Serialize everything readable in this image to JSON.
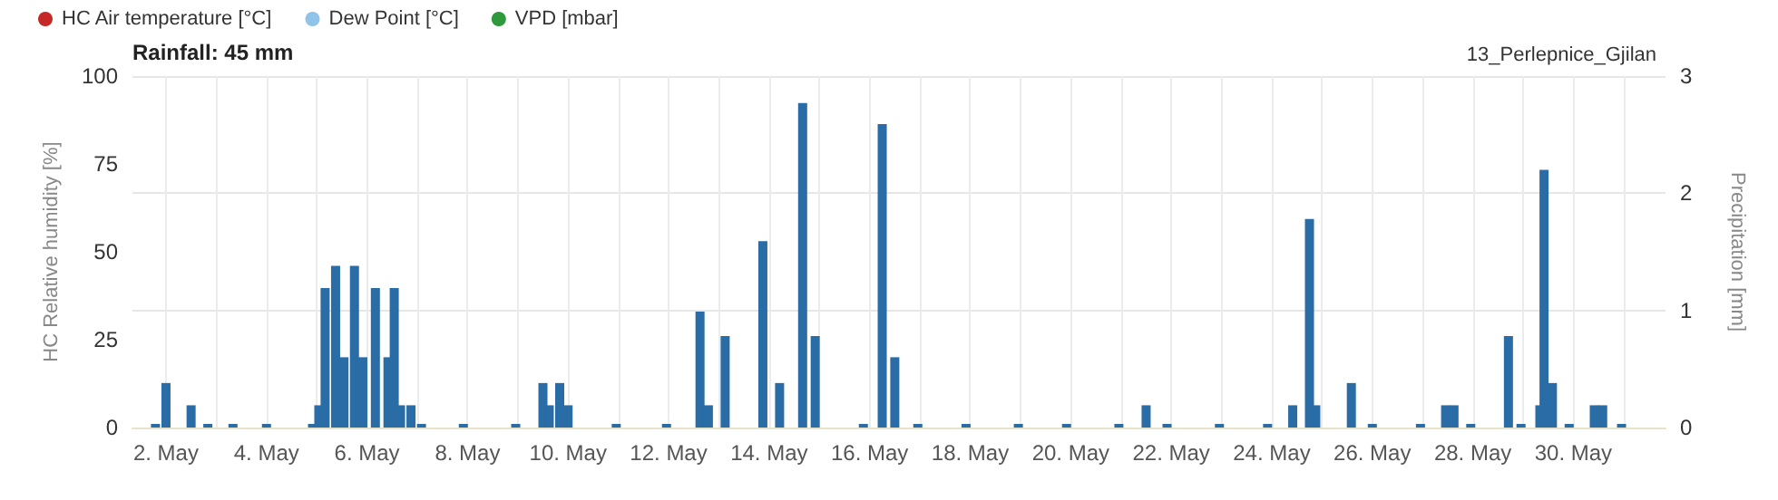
{
  "chart_data": {
    "type": "bar",
    "title": "Rainfall: 45 mm",
    "subtitle": "13_Perlepnice_Gjilan",
    "ylabel": "HC Relative humidity [%]",
    "y2label": "Precipitation [mm]",
    "xlim": [
      "--05-01T08:00",
      "--05-31T20:00"
    ],
    "xticks": [
      {
        "value": "--05-02",
        "label": "2. May"
      },
      {
        "value": "--05-03",
        "label": null
      },
      {
        "value": "--05-04",
        "label": "4. May"
      },
      {
        "value": "--05-05",
        "label": null
      },
      {
        "value": "--05-06",
        "label": "6. May"
      },
      {
        "value": "--05-07",
        "label": null
      },
      {
        "value": "--05-08",
        "label": "8. May"
      },
      {
        "value": "--05-09",
        "label": null
      },
      {
        "value": "--05-10",
        "label": "10. May"
      },
      {
        "value": "--05-11",
        "label": null
      },
      {
        "value": "--05-12",
        "label": "12. May"
      },
      {
        "value": "--05-13",
        "label": null
      },
      {
        "value": "--05-14",
        "label": "14. May"
      },
      {
        "value": "--05-15",
        "label": null
      },
      {
        "value": "--05-16",
        "label": "16. May"
      },
      {
        "value": "--05-17",
        "label": null
      },
      {
        "value": "--05-18",
        "label": "18. May"
      },
      {
        "value": "--05-19",
        "label": null
      },
      {
        "value": "--05-20",
        "label": "20. May"
      },
      {
        "value": "--05-21",
        "label": null
      },
      {
        "value": "--05-22",
        "label": "22. May"
      },
      {
        "value": "--05-23",
        "label": null
      },
      {
        "value": "--05-24",
        "label": "24. May"
      },
      {
        "value": "--05-25",
        "label": null
      },
      {
        "value": "--05-26",
        "label": "26. May"
      },
      {
        "value": "--05-27",
        "label": null
      },
      {
        "value": "--05-28",
        "label": "28. May"
      },
      {
        "value": "--05-29",
        "label": null
      },
      {
        "value": "--05-30",
        "label": "30. May"
      },
      {
        "value": "--05-31",
        "label": null
      }
    ],
    "ylim": [
      0,
      100
    ],
    "yticks": [
      0,
      25,
      50,
      75,
      100
    ],
    "y2lim": [
      0,
      3
    ],
    "y2ticks": [
      0,
      1,
      2,
      3
    ],
    "grid": true,
    "legend": "top left",
    "series": [
      {
        "name": "HC Air temperature [°C]",
        "type": "line",
        "color": "#c62828"
      },
      {
        "name": "Dew Point [°C]",
        "type": "line",
        "color": "#90c3ea"
      },
      {
        "name": "VPD [mbar]",
        "type": "line",
        "color": "#2e9a3c"
      },
      {
        "axis": "y2",
        "color": "#2a6ca6",
        "x": [
          "--05-01T19:00",
          "--05-02T00:00",
          "--05-02T12:00",
          "--05-02T20:00",
          "--05-03T08:00",
          "--05-04T00:00",
          "--05-04T22:00",
          "--05-05T01:00",
          "--05-05T04:00",
          "--05-05T09:00",
          "--05-05T13:00",
          "--05-05T18:00",
          "--05-05T22:00",
          "--05-06T04:00",
          "--05-06T10:00",
          "--05-06T13:00",
          "--05-06T16:00",
          "--05-06T21:00",
          "--05-07T02:00",
          "--05-07T22:00",
          "--05-08T23:00",
          "--05-09T12:00",
          "--05-09T15:00",
          "--05-09T20:00",
          "--05-10T00:00",
          "--05-10T23:00",
          "--05-11T23:00",
          "--05-12T15:00",
          "--05-12T19:00",
          "--05-13T03:00",
          "--05-13T21:00",
          "--05-14T05:00",
          "--05-14T16:00",
          "--05-14T22:00",
          "--05-15T21:00",
          "--05-16T06:00",
          "--05-16T12:00",
          "--05-16T23:00",
          "--05-17T22:00",
          "--05-18T23:00",
          "--05-19T22:00",
          "--05-20T23:00",
          "--05-21T12:00",
          "--05-21T22:00",
          "--05-22T23:00",
          "--05-23T22:00",
          "--05-24T10:00",
          "--05-24T18:00",
          "--05-24T21:00",
          "--05-25T14:00",
          "--05-26T00:00",
          "--05-26T23:00",
          "--05-27T11:00",
          "--05-27T15:00",
          "--05-27T23:00",
          "--05-28T17:00",
          "--05-28T23:00",
          "--05-29T08:00",
          "--05-29T10:00",
          "--05-29T14:00",
          "--05-29T22:00",
          "--05-30T10:00",
          "--05-30T14:00",
          "--05-30T23:00"
        ],
        "values": [
          0,
          0.38,
          0.19,
          0,
          0,
          0,
          0,
          0.19,
          1.19,
          1.38,
          0.6,
          1.38,
          0.6,
          1.19,
          0.6,
          1.19,
          0.19,
          0.19,
          0,
          0,
          0,
          0.38,
          0.19,
          0.38,
          0.19,
          0,
          0,
          0.99,
          0.19,
          0.78,
          1.59,
          0.38,
          2.77,
          0.78,
          0,
          2.59,
          0.6,
          0,
          0,
          0,
          0,
          0,
          0.19,
          0,
          0,
          0,
          0.19,
          1.78,
          0.19,
          0.38,
          0,
          0,
          0.19,
          0.19,
          0,
          0.78,
          0,
          0.19,
          2.2,
          0.38,
          0,
          0.19,
          0.19,
          0
        ]
      }
    ]
  }
}
